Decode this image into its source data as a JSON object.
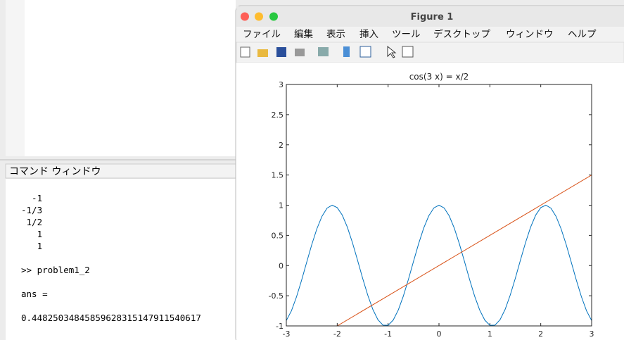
{
  "command_window": {
    "header": "コマンド ウィンドウ",
    "lines": [
      "  -1",
      "-1/3",
      " 1/2",
      "   1",
      "   1",
      ">> problem1_2",
      "ans =",
      "0.44825034845859628315147911540617"
    ]
  },
  "figure": {
    "window_title": "Figure 1",
    "menu": [
      "ファイル",
      "編集",
      "表示",
      "挿入",
      "ツール",
      "デスクトップ",
      "ウィンドウ",
      "ヘルプ"
    ],
    "chart_data": {
      "type": "line",
      "title": "cos(3 x) = x/2",
      "series": [
        {
          "color": "#0072bd",
          "x": [
            -3,
            -2.9,
            -2.8,
            -2.7,
            -2.6,
            -2.5,
            -2.4,
            -2.3,
            -2.2,
            -2.1,
            -2,
            -1.9,
            -1.8,
            -1.7,
            -1.6,
            -1.5,
            -1.4,
            -1.3,
            -1.2,
            -1.1,
            -1,
            -0.9,
            -0.8,
            -0.7,
            -0.6,
            -0.5,
            -0.4,
            -0.3,
            -0.2,
            -0.1,
            0,
            0.1,
            0.2,
            0.3,
            0.4,
            0.5,
            0.6,
            0.7,
            0.8,
            0.9,
            1,
            1.1,
            1.2,
            1.3,
            1.4,
            1.5,
            1.6,
            1.7,
            1.8,
            1.9,
            2,
            2.1,
            2.2,
            2.3,
            2.4,
            2.5,
            2.6,
            2.7,
            2.8,
            2.9,
            3
          ],
          "values": [
            -0.911,
            -0.75,
            -0.519,
            -0.243,
            0.054,
            0.347,
            0.608,
            0.815,
            0.951,
            1,
            0.96,
            0.835,
            0.635,
            0.378,
            0.087,
            -0.211,
            -0.49,
            -0.726,
            -0.897,
            -0.987,
            -0.99,
            -0.904,
            -0.737,
            -0.505,
            -0.227,
            0.071,
            0.362,
            0.622,
            0.825,
            0.955,
            1,
            0.955,
            0.825,
            0.622,
            0.362,
            0.071,
            -0.227,
            -0.505,
            -0.737,
            -0.904,
            -0.99,
            -0.987,
            -0.897,
            -0.726,
            -0.49,
            -0.211,
            0.087,
            0.378,
            0.635,
            0.835,
            0.96,
            1,
            0.951,
            0.815,
            0.608,
            0.347,
            0.054,
            -0.243,
            -0.519,
            -0.75,
            -0.911
          ]
        },
        {
          "color": "#d95319",
          "x": [
            -3,
            3
          ],
          "values": [
            -1.5,
            1.5
          ]
        }
      ],
      "xlim": [
        -3,
        3
      ],
      "ylim": [
        -1,
        3
      ],
      "xticks": [
        -3,
        -2,
        -1,
        0,
        1,
        2,
        3
      ],
      "yticks": [
        -1,
        -0.5,
        0,
        0.5,
        1,
        1.5,
        2,
        2.5,
        3
      ]
    }
  }
}
